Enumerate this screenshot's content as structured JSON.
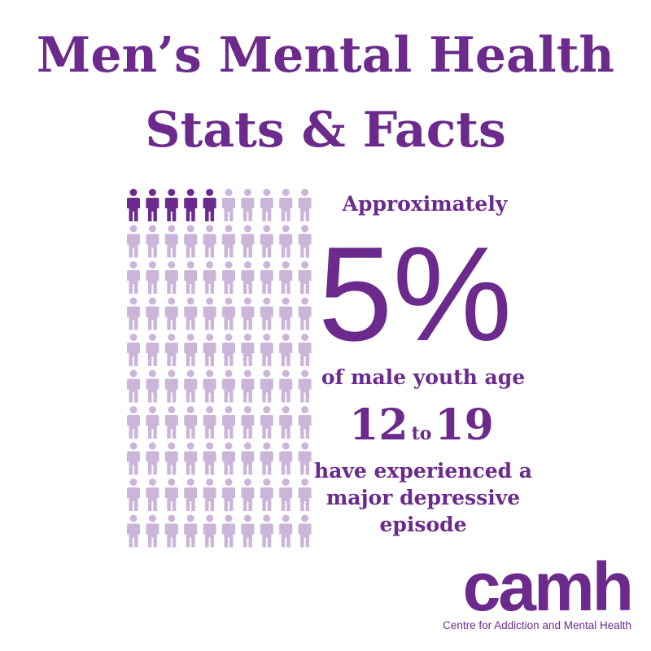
{
  "header": {
    "title_line1": "Men’s Mental Health",
    "title_line2": "Stats & Facts"
  },
  "stat": {
    "intro": "Approximately",
    "value": 5,
    "label": "5%",
    "text1": "of male youth age",
    "age_from": "12",
    "age_joiner": "to",
    "age_to": "19",
    "text2": [
      "have experienced a",
      "major depressive",
      "episode"
    ]
  },
  "logo": {
    "name": "camh",
    "tagline": "Centre for Addiction and Mental Health"
  }
}
